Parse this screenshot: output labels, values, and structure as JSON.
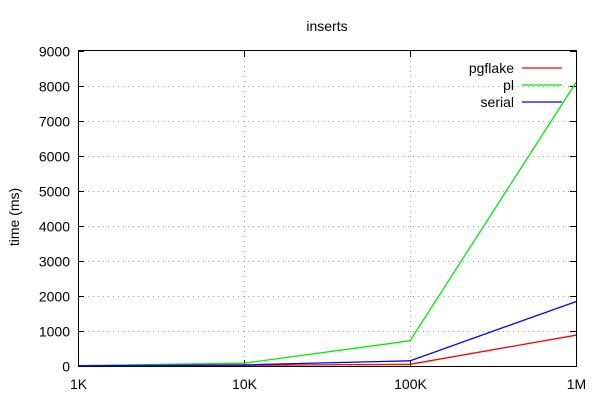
{
  "chart_data": {
    "type": "line",
    "title": "inserts",
    "xlabel": "",
    "ylabel": "time (ms)",
    "xscale": "log",
    "x": [
      1000,
      10000,
      100000,
      1000000
    ],
    "xtick_labels": [
      "1K",
      "10K",
      "100K",
      "1M"
    ],
    "ylim": [
      0,
      9000
    ],
    "yticks": [
      0,
      1000,
      2000,
      3000,
      4000,
      5000,
      6000,
      7000,
      8000,
      9000
    ],
    "grid": true,
    "legend_position": "top-right",
    "series": [
      {
        "name": "pgflake",
        "color": "#ff0000",
        "values": [
          5,
          20,
          50,
          880
        ]
      },
      {
        "name": "pl",
        "color": "#00ee00",
        "values": [
          10,
          80,
          720,
          8100
        ]
      },
      {
        "name": "serial",
        "color": "#0000ff",
        "values": [
          5,
          30,
          150,
          1840
        ]
      }
    ]
  }
}
